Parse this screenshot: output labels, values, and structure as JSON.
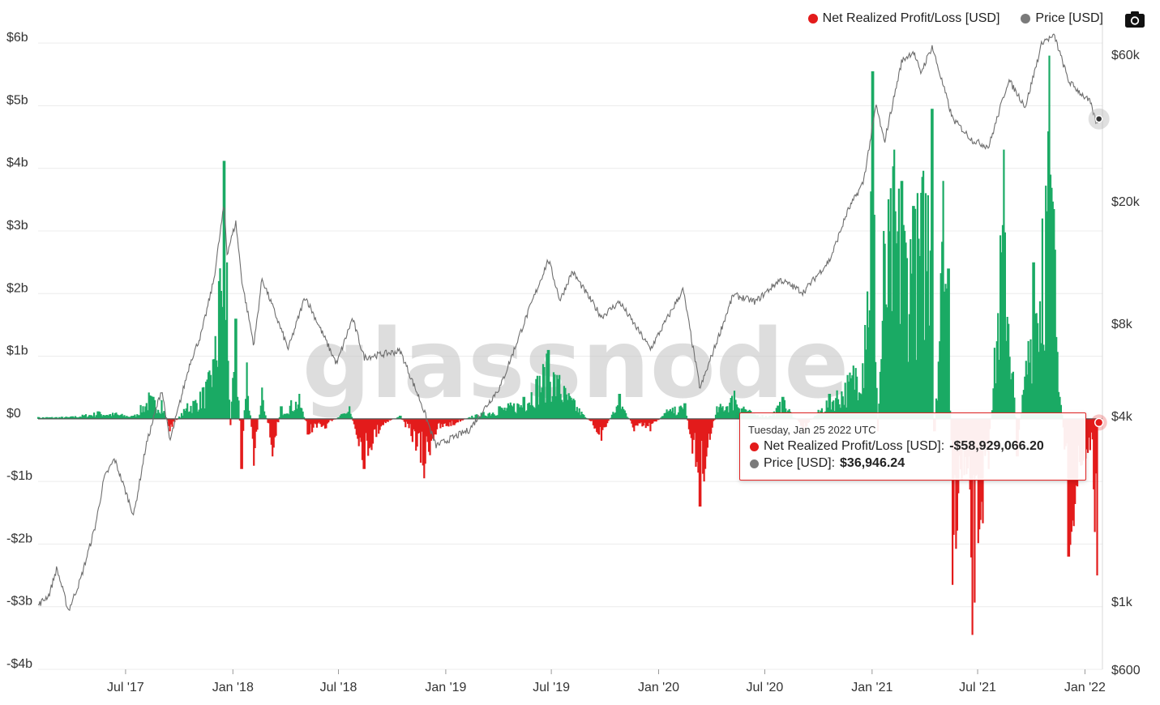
{
  "legend": {
    "items": [
      {
        "label": "Net Realized Profit/Loss [USD]",
        "color": "#e31b1b"
      },
      {
        "label": "Price [USD]",
        "color": "#7a7a7a"
      }
    ]
  },
  "watermark": "glassnode",
  "tooltip": {
    "date": "Tuesday, Jan 25 2022 UTC",
    "rows": [
      {
        "label": "Net Realized Profit/Loss [USD]:",
        "value": "-$58,929,066.20",
        "color": "#e31b1b"
      },
      {
        "label": "Price [USD]:",
        "value": "$36,946.24",
        "color": "#7a7a7a"
      }
    ]
  },
  "chart_data": {
    "type": "area",
    "title": "",
    "x_range": [
      "2017-02-01",
      "2022-01-31"
    ],
    "x_ticks": [
      {
        "date": "2017-07-01",
        "label": "Jul '17"
      },
      {
        "date": "2018-01-01",
        "label": "Jan '18"
      },
      {
        "date": "2018-07-01",
        "label": "Jul '18"
      },
      {
        "date": "2019-01-01",
        "label": "Jan '19"
      },
      {
        "date": "2019-07-01",
        "label": "Jul '19"
      },
      {
        "date": "2020-01-01",
        "label": "Jan '20"
      },
      {
        "date": "2020-07-01",
        "label": "Jul '20"
      },
      {
        "date": "2021-01-01",
        "label": "Jan '21"
      },
      {
        "date": "2021-07-01",
        "label": "Jul '21"
      },
      {
        "date": "2022-01-01",
        "label": "Jan '22"
      }
    ],
    "y_left": {
      "unit": "USD billions",
      "range": [
        -4,
        6.3
      ],
      "ticks": [
        {
          "value": 6,
          "label": "$6b"
        },
        {
          "value": 5,
          "label": "$5b"
        },
        {
          "value": 4,
          "label": "$4b"
        },
        {
          "value": 3,
          "label": "$3b"
        },
        {
          "value": 2,
          "label": "$2b"
        },
        {
          "value": 1,
          "label": "$1b"
        },
        {
          "value": 0,
          "label": "$0"
        },
        {
          "value": -1,
          "label": "-$1b"
        },
        {
          "value": -2,
          "label": "-$2b"
        },
        {
          "value": -3,
          "label": "-$3b"
        },
        {
          "value": -4,
          "label": "-$4b"
        }
      ]
    },
    "y_right": {
      "scale": "log",
      "range": [
        600,
        75000
      ],
      "ticks": [
        {
          "value": 60000,
          "label": "$60k"
        },
        {
          "value": 20000,
          "label": "$20k"
        },
        {
          "value": 8000,
          "label": "$8k"
        },
        {
          "value": 4000,
          "label": "$4k"
        },
        {
          "value": 1000,
          "label": "$1k"
        },
        {
          "value": 600,
          "label": "$600"
        }
      ]
    },
    "series": [
      {
        "name": "Net Realized Profit/Loss [USD]",
        "axis": "left",
        "unit": "USD billions",
        "positive_color": "#1aaa64",
        "negative_color": "#e31b1b",
        "points": [
          [
            "2017-02-01",
            0.03
          ],
          [
            "2017-04-01",
            0.04
          ],
          [
            "2017-05-15",
            0.12
          ],
          [
            "2017-06-15",
            0.1
          ],
          [
            "2017-07-15",
            0.05
          ],
          [
            "2017-08-10",
            0.42
          ],
          [
            "2017-09-01",
            0.3
          ],
          [
            "2017-09-15",
            -0.2
          ],
          [
            "2017-10-15",
            0.25
          ],
          [
            "2017-11-10",
            0.5
          ],
          [
            "2017-11-28",
            0.95
          ],
          [
            "2017-12-08",
            2.2
          ],
          [
            "2017-12-17",
            4.12
          ],
          [
            "2017-12-22",
            2.5
          ],
          [
            "2017-12-28",
            -0.1
          ],
          [
            "2018-01-06",
            1.6
          ],
          [
            "2018-01-16",
            -0.8
          ],
          [
            "2018-01-25",
            0.9
          ],
          [
            "2018-02-06",
            -0.75
          ],
          [
            "2018-02-20",
            0.5
          ],
          [
            "2018-03-10",
            -0.6
          ],
          [
            "2018-03-25",
            0.2
          ],
          [
            "2018-04-25",
            0.4
          ],
          [
            "2018-05-10",
            -0.25
          ],
          [
            "2018-06-10",
            -0.15
          ],
          [
            "2018-07-20",
            0.2
          ],
          [
            "2018-08-14",
            -0.8
          ],
          [
            "2018-09-15",
            -0.1
          ],
          [
            "2018-10-15",
            0.05
          ],
          [
            "2018-11-19",
            -0.7
          ],
          [
            "2018-11-25",
            -0.95
          ],
          [
            "2018-12-15",
            -0.25
          ],
          [
            "2019-01-15",
            -0.1
          ],
          [
            "2019-02-15",
            0.05
          ],
          [
            "2019-04-03",
            0.2
          ],
          [
            "2019-05-15",
            0.35
          ],
          [
            "2019-06-26",
            1.1
          ],
          [
            "2019-07-15",
            0.7
          ],
          [
            "2019-08-10",
            0.3
          ],
          [
            "2019-09-25",
            -0.35
          ],
          [
            "2019-10-26",
            0.4
          ],
          [
            "2019-11-20",
            -0.2
          ],
          [
            "2019-12-18",
            -0.2
          ],
          [
            "2020-01-15",
            0.15
          ],
          [
            "2020-02-15",
            0.25
          ],
          [
            "2020-03-12",
            -1.4
          ],
          [
            "2020-04-10",
            0.2
          ],
          [
            "2020-05-10",
            0.45
          ],
          [
            "2020-06-10",
            0.1
          ],
          [
            "2020-07-10",
            0.05
          ],
          [
            "2020-08-01",
            0.35
          ],
          [
            "2020-09-05",
            -0.2
          ],
          [
            "2020-10-20",
            0.4
          ],
          [
            "2020-11-20",
            0.7
          ],
          [
            "2020-12-20",
            1.5
          ],
          [
            "2021-01-02",
            5.55
          ],
          [
            "2021-01-11",
            -0.2
          ],
          [
            "2021-01-21",
            3.0
          ],
          [
            "2021-02-08",
            4.3
          ],
          [
            "2021-02-21",
            3.8
          ],
          [
            "2021-03-13",
            3.4
          ],
          [
            "2021-04-14",
            4.95
          ],
          [
            "2021-04-18",
            -0.2
          ],
          [
            "2021-05-03",
            3.8
          ],
          [
            "2021-05-12",
            2.4
          ],
          [
            "2021-05-19",
            -2.65
          ],
          [
            "2021-06-08",
            -0.9
          ],
          [
            "2021-06-22",
            -3.45
          ],
          [
            "2021-07-20",
            -0.8
          ],
          [
            "2021-08-15",
            4.3
          ],
          [
            "2021-09-07",
            -0.6
          ],
          [
            "2021-10-05",
            2.5
          ],
          [
            "2021-10-20",
            3.2
          ],
          [
            "2021-11-01",
            5.8
          ],
          [
            "2021-11-09",
            3.35
          ],
          [
            "2021-12-04",
            -2.2
          ],
          [
            "2022-01-10",
            -0.5
          ],
          [
            "2022-01-22",
            -2.5
          ],
          [
            "2022-01-25",
            -0.059
          ]
        ]
      },
      {
        "name": "Price [USD]",
        "axis": "right",
        "color": "#6e6e6e",
        "points": [
          [
            "2017-02-01",
            970
          ],
          [
            "2017-02-20",
            1050
          ],
          [
            "2017-03-05",
            1280
          ],
          [
            "2017-03-25",
            930
          ],
          [
            "2017-04-15",
            1180
          ],
          [
            "2017-05-10",
            1750
          ],
          [
            "2017-05-25",
            2500
          ],
          [
            "2017-06-12",
            2900
          ],
          [
            "2017-07-15",
            1900
          ],
          [
            "2017-08-05",
            3200
          ],
          [
            "2017-09-01",
            4900
          ],
          [
            "2017-09-15",
            3300
          ],
          [
            "2017-10-20",
            6000
          ],
          [
            "2017-11-08",
            7400
          ],
          [
            "2017-11-29",
            11000
          ],
          [
            "2017-12-17",
            19500
          ],
          [
            "2017-12-22",
            13500
          ],
          [
            "2018-01-06",
            17000
          ],
          [
            "2018-01-17",
            10800
          ],
          [
            "2018-02-06",
            6800
          ],
          [
            "2018-02-20",
            11200
          ],
          [
            "2018-04-06",
            6600
          ],
          [
            "2018-05-05",
            9800
          ],
          [
            "2018-06-28",
            5900
          ],
          [
            "2018-07-25",
            8300
          ],
          [
            "2018-08-14",
            6200
          ],
          [
            "2018-10-15",
            6500
          ],
          [
            "2018-11-20",
            4400
          ],
          [
            "2018-12-15",
            3200
          ],
          [
            "2019-02-10",
            3600
          ],
          [
            "2019-04-05",
            5000
          ],
          [
            "2019-05-15",
            8000
          ],
          [
            "2019-06-26",
            12900
          ],
          [
            "2019-07-16",
            9500
          ],
          [
            "2019-08-06",
            11800
          ],
          [
            "2019-09-25",
            8400
          ],
          [
            "2019-10-26",
            9400
          ],
          [
            "2019-12-18",
            6600
          ],
          [
            "2020-02-12",
            10300
          ],
          [
            "2020-03-12",
            4900
          ],
          [
            "2020-05-08",
            9900
          ],
          [
            "2020-06-15",
            9400
          ],
          [
            "2020-07-27",
            11100
          ],
          [
            "2020-09-05",
            10100
          ],
          [
            "2020-10-21",
            12900
          ],
          [
            "2020-11-20",
            18500
          ],
          [
            "2020-12-17",
            23000
          ],
          [
            "2021-01-08",
            41000
          ],
          [
            "2021-01-22",
            31000
          ],
          [
            "2021-02-21",
            57000
          ],
          [
            "2021-03-13",
            61300
          ],
          [
            "2021-03-25",
            52000
          ],
          [
            "2021-04-14",
            63500
          ],
          [
            "2021-05-19",
            37000
          ],
          [
            "2021-06-22",
            31500
          ],
          [
            "2021-07-20",
            30000
          ],
          [
            "2021-08-23",
            49500
          ],
          [
            "2021-09-21",
            40500
          ],
          [
            "2021-10-20",
            66000
          ],
          [
            "2021-11-10",
            68500
          ],
          [
            "2021-12-04",
            49000
          ],
          [
            "2022-01-10",
            41800
          ],
          [
            "2022-01-22",
            35000
          ],
          [
            "2022-01-25",
            36946.24
          ]
        ]
      }
    ],
    "grid": "horizontal",
    "legend_position": "top-right"
  }
}
